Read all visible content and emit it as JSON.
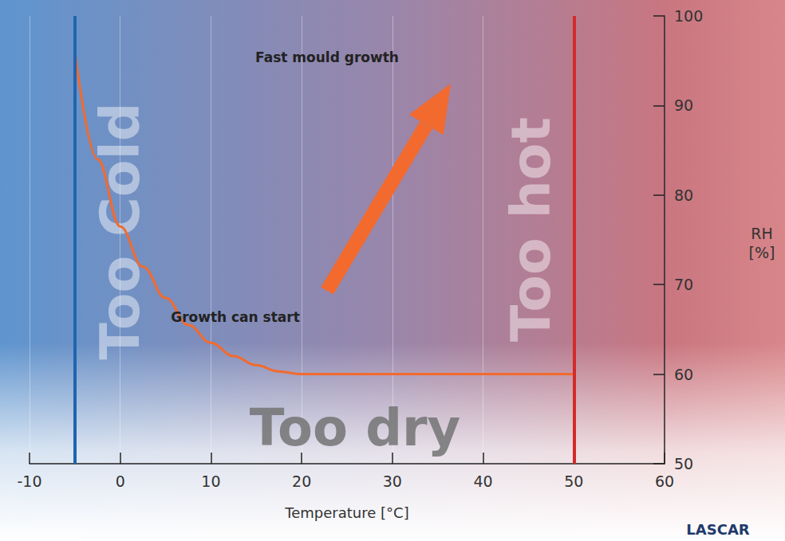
{
  "chart_data": {
    "type": "line",
    "x_label": "Temperature [°C]",
    "y_label": "RH\n[%]",
    "x": [
      -5,
      -2.5,
      0,
      2.5,
      5,
      7.5,
      10,
      12.5,
      15,
      17.5,
      20,
      50
    ],
    "values": [
      96,
      84,
      76.5,
      72,
      68.5,
      65.5,
      63.5,
      62,
      61,
      60.3,
      60,
      60
    ],
    "color": "#f26a2e",
    "xlim": [
      -10,
      60
    ],
    "xticks": [
      -10,
      0,
      10,
      20,
      30,
      40,
      50,
      60
    ],
    "ylim": [
      50,
      100
    ],
    "yticks": [
      50,
      60,
      70,
      80,
      90,
      100
    ],
    "grid": "x",
    "vertical_lines": [
      {
        "x": -5,
        "color": "#1f64b0"
      },
      {
        "x": 50,
        "color": "#d42a2a"
      }
    ],
    "annotations": {
      "too_cold": "Too Cold",
      "too_hot": "Too hot",
      "too_dry": "Too dry",
      "fast": "Fast mould growth",
      "start": "Growth can start"
    },
    "logo": "LASCAR"
  }
}
